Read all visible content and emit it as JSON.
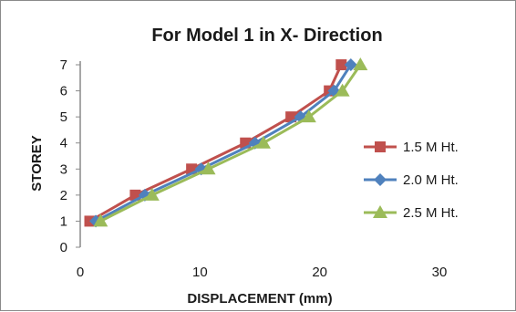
{
  "chart_data": {
    "type": "line",
    "title": "For Model 1 in X- Direction",
    "xlabel": "DISPLACEMENT (mm)",
    "ylabel": "STOREY",
    "xlim": [
      0,
      30
    ],
    "ylim": [
      0,
      7
    ],
    "xticks": [
      0,
      10,
      20,
      30
    ],
    "yticks": [
      0,
      1,
      2,
      3,
      4,
      5,
      6,
      7
    ],
    "grid": false,
    "legend_position": "right",
    "series": [
      {
        "name": "1.5 M Ht.",
        "color": "#c0504d",
        "marker": "square",
        "points": [
          [
            0.8,
            1
          ],
          [
            4.6,
            2
          ],
          [
            9.3,
            3
          ],
          [
            13.8,
            4
          ],
          [
            17.6,
            5
          ],
          [
            20.8,
            6
          ],
          [
            21.8,
            7
          ]
        ]
      },
      {
        "name": "2.0 M Ht.",
        "color": "#4f81bd",
        "marker": "diamond",
        "points": [
          [
            1.3,
            1
          ],
          [
            5.4,
            2
          ],
          [
            10.1,
            3
          ],
          [
            14.6,
            4
          ],
          [
            18.4,
            5
          ],
          [
            21.2,
            6
          ],
          [
            22.6,
            7
          ]
        ]
      },
      {
        "name": "2.5 M Ht.",
        "color": "#9bbb59",
        "marker": "triangle",
        "points": [
          [
            1.7,
            1
          ],
          [
            6.0,
            2
          ],
          [
            10.7,
            3
          ],
          [
            15.3,
            4
          ],
          [
            19.1,
            5
          ],
          [
            21.9,
            6
          ],
          [
            23.4,
            7
          ]
        ]
      }
    ]
  }
}
